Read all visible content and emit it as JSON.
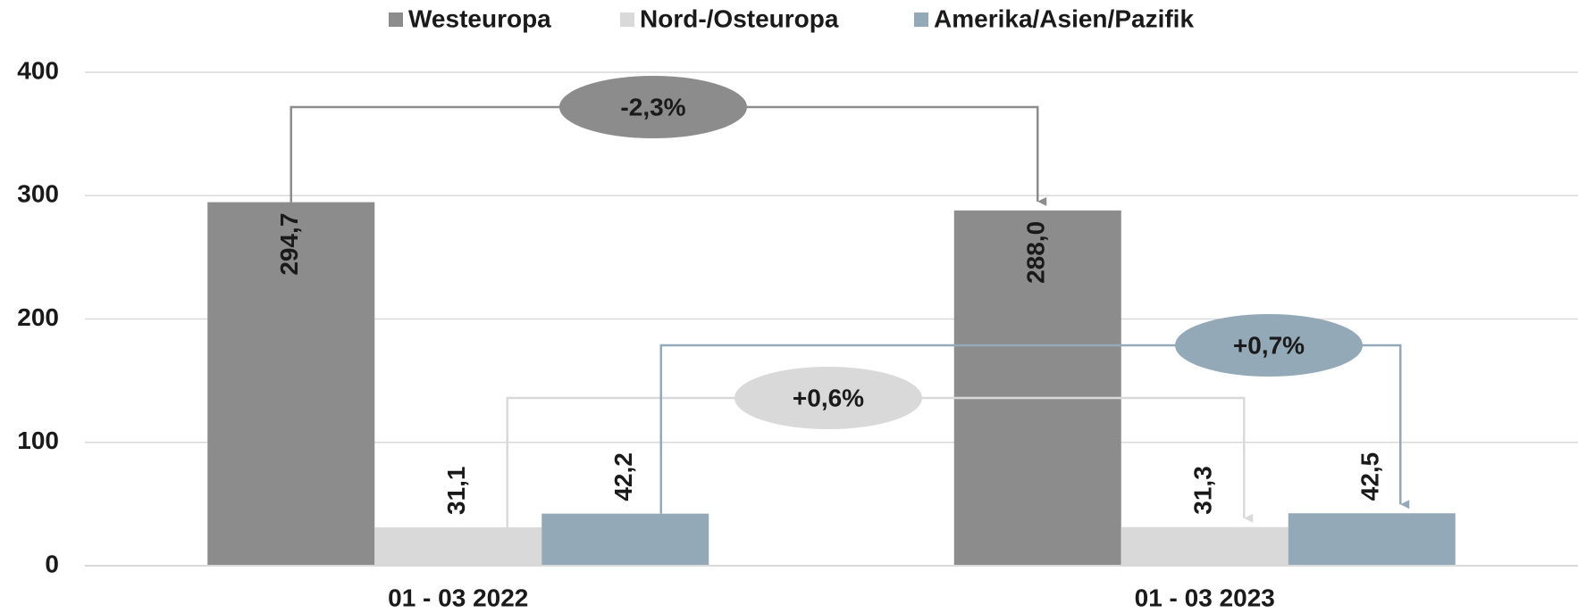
{
  "chart_data": {
    "type": "bar",
    "categories": [
      "01 - 03 2022",
      "01 - 03 2023"
    ],
    "series": [
      {
        "name": "Westeuropa",
        "color": "#8c8c8c",
        "values": [
          294.7,
          288.0
        ],
        "value_labels": [
          "294,7",
          "288,0"
        ],
        "change_label": "-2,3%"
      },
      {
        "name": "Nord-/Osteuropa",
        "color": "#d9d9d9",
        "values": [
          31.1,
          31.3
        ],
        "value_labels": [
          "31,1",
          "31,3"
        ],
        "change_label": "+0,6%"
      },
      {
        "name": "Amerika/Asien/Pazifik",
        "color": "#94a9b8",
        "values": [
          42.2,
          42.5
        ],
        "value_labels": [
          "42,2",
          "42,5"
        ],
        "change_label": "+0,7%"
      }
    ],
    "ylim": [
      0,
      400
    ],
    "yticks": [
      0,
      100,
      200,
      300,
      400
    ],
    "grid": true,
    "legend": "top"
  }
}
